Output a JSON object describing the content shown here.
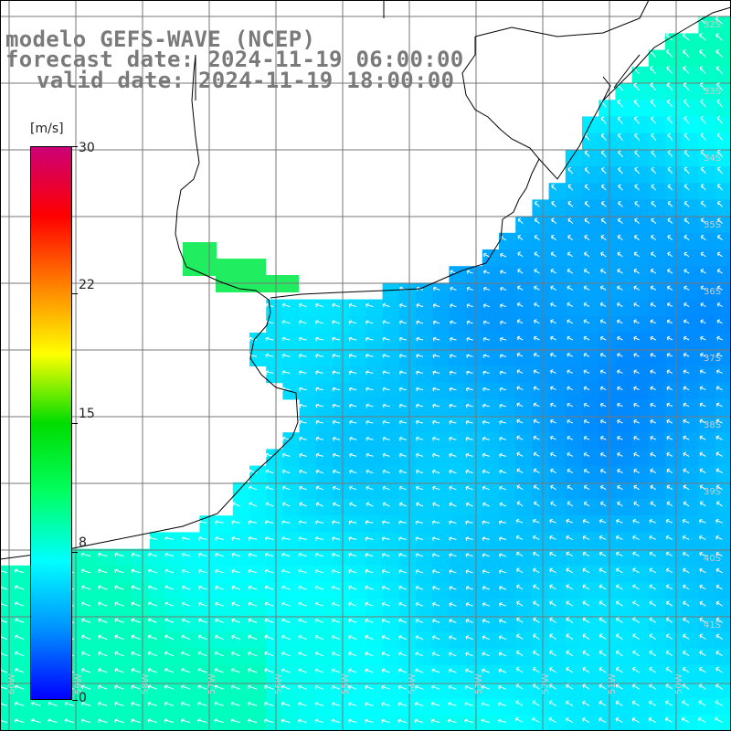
{
  "title": {
    "line1": "modelo GEFS-WAVE (NCEP)",
    "line2": "forecast date: 2024-11-19 06:00:00",
    "line3": "valid date: 2024-11-19 18:00:00"
  },
  "colorbar": {
    "unit": "[m/s]",
    "ticks": [
      "30",
      "22",
      "15",
      "8",
      "0"
    ],
    "tick_values": [
      30,
      22,
      15,
      8,
      0
    ],
    "range": [
      0,
      30
    ],
    "colors": [
      "#0000ff",
      "#0090ff",
      "#00ffff",
      "#00ff60",
      "#00dd00",
      "#ffff00",
      "#ff8000",
      "#ff0000",
      "#cc0077"
    ]
  },
  "map": {
    "variable": "wind speed and direction",
    "land_color": "#ffffff",
    "coast_color": "#000000",
    "grid_color": "#777777",
    "right_edge_labels": [
      "32S",
      "33S",
      "34S",
      "35S",
      "36S",
      "37S",
      "38S",
      "39S",
      "40S",
      "41S"
    ],
    "bottom_edge_labels": [
      "60W",
      "59W",
      "58W",
      "57W",
      "56W",
      "55W",
      "54W",
      "53W",
      "52W",
      "51W",
      "50W"
    ],
    "dominant_wind_direction": "from southeast"
  }
}
